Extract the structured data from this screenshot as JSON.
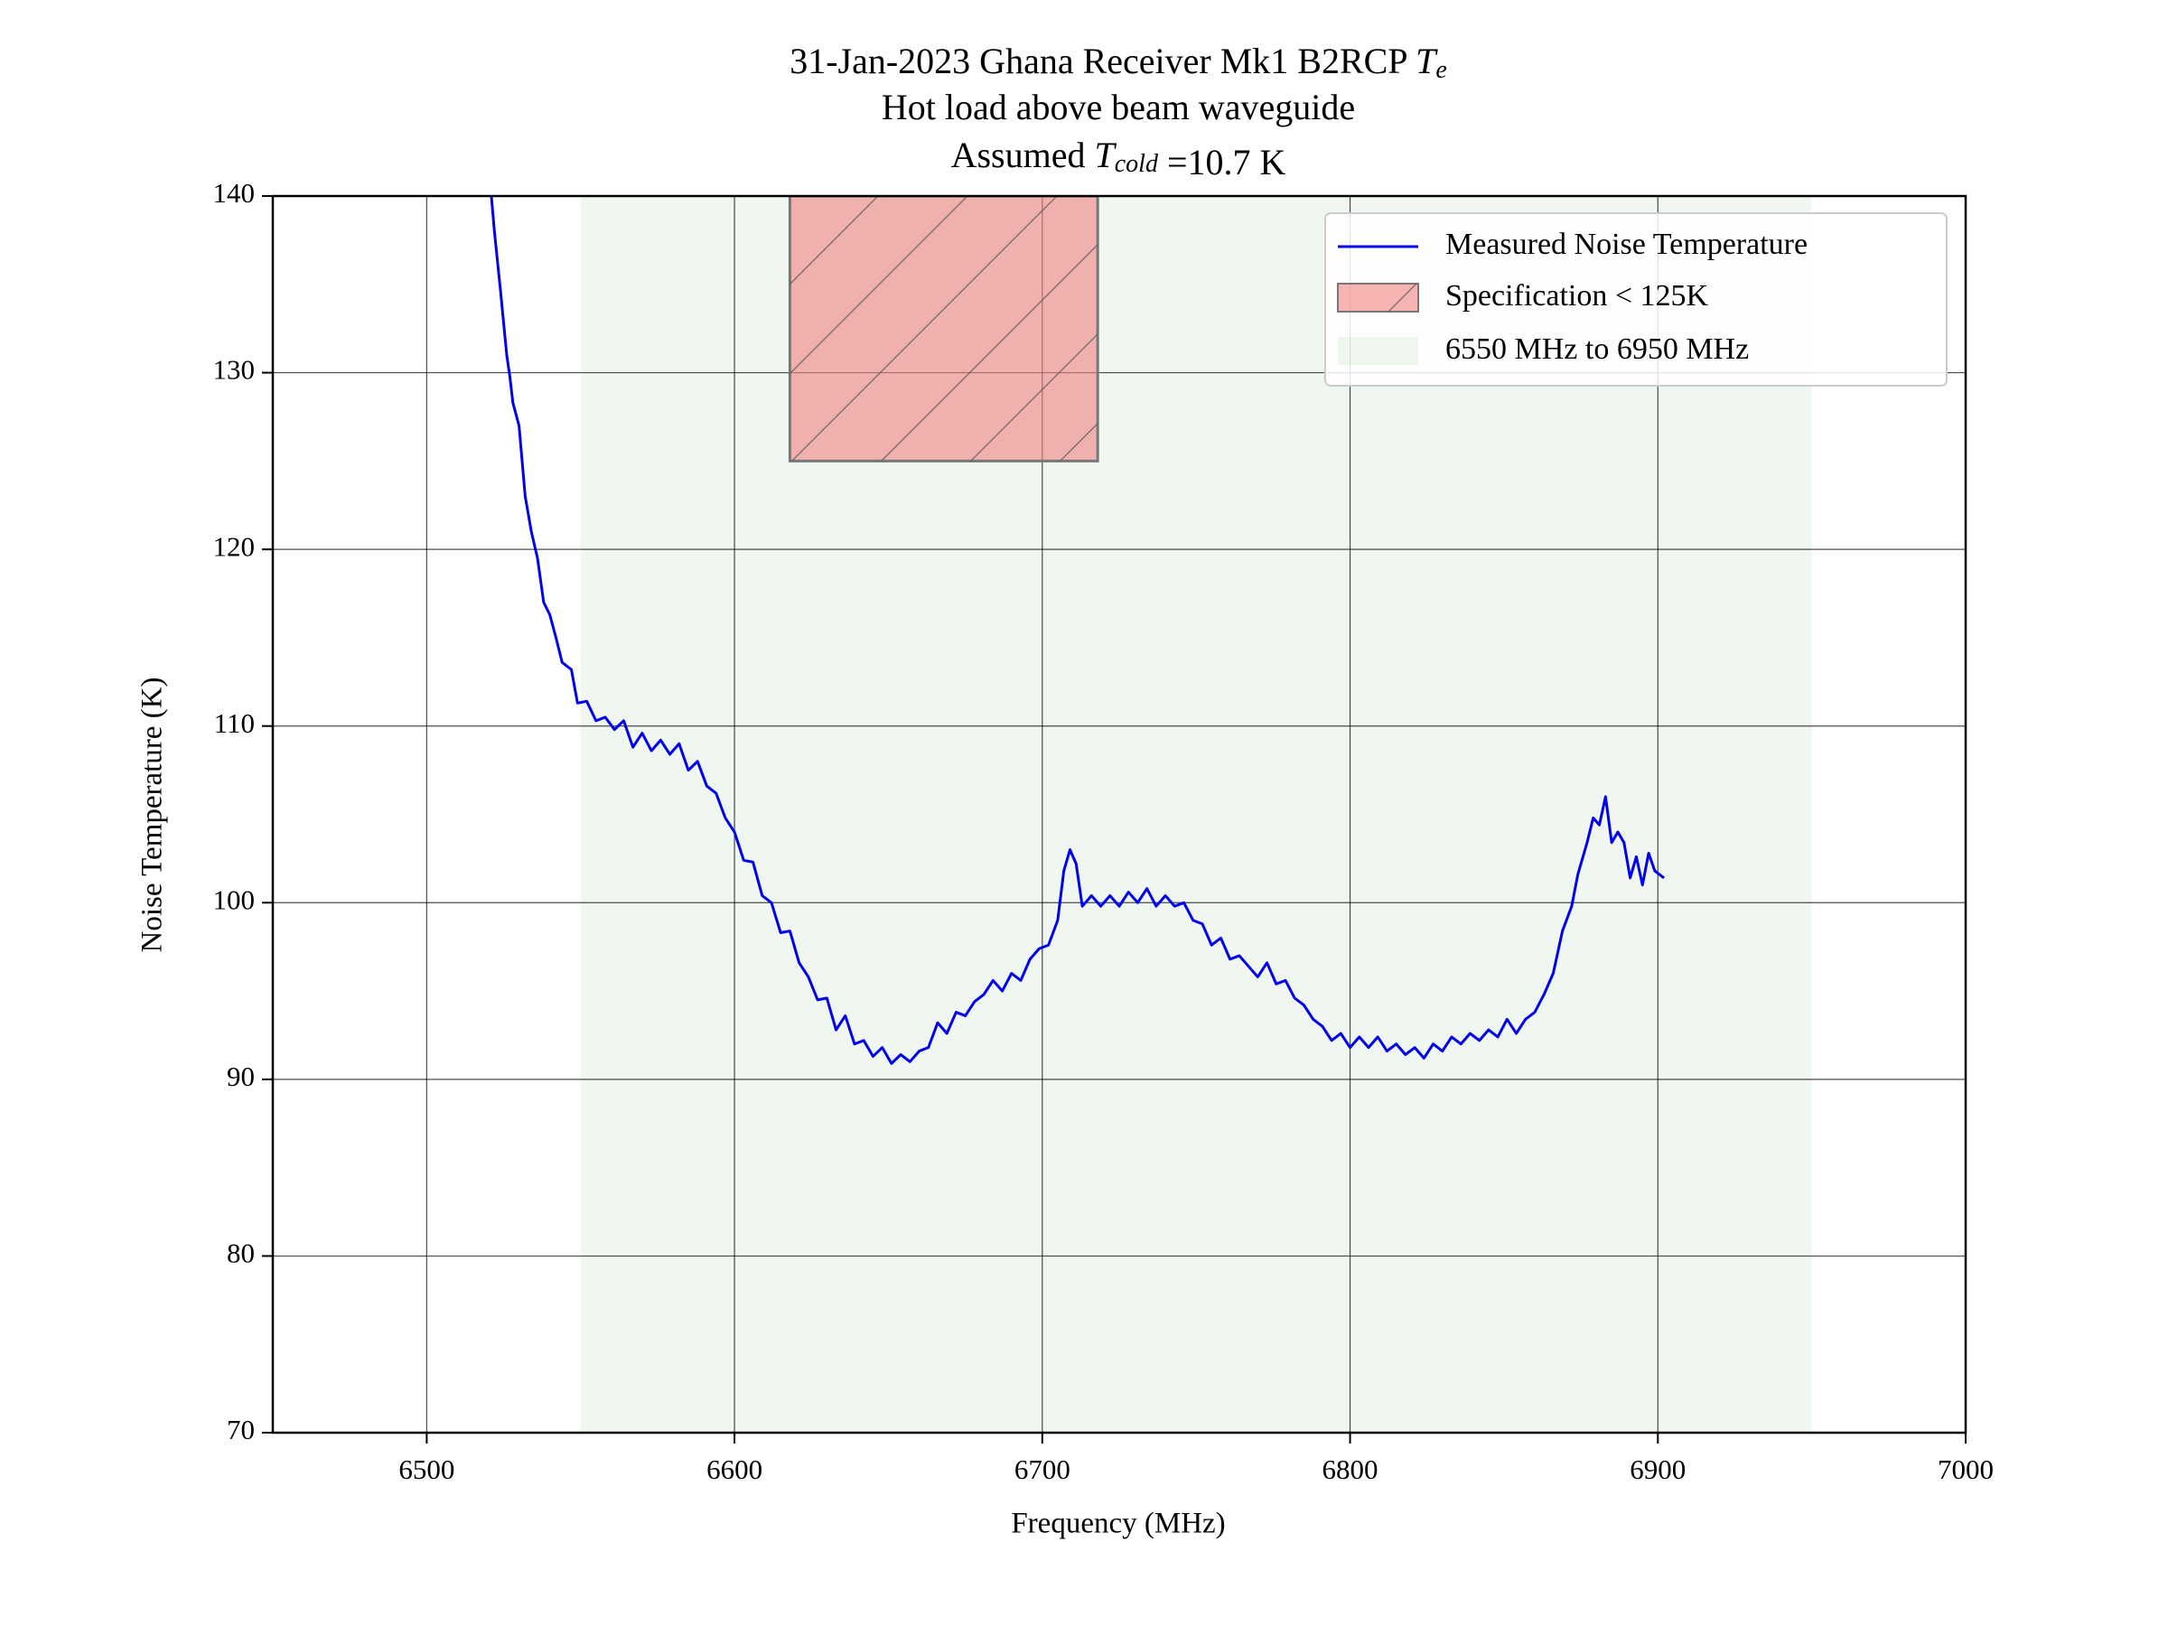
{
  "chart_data": {
    "type": "line",
    "title": [
      [
        "31-Jan-2023 Ghana Receiver Mk1 B2RCP ",
        {
          "i": "T",
          "sub": "e"
        }
      ],
      [
        "Hot load above beam waveguide"
      ],
      [
        "Assumed ",
        {
          "i": "T",
          "sub": "cold"
        },
        " =10.7 K"
      ]
    ],
    "xlabel": "Frequency (MHz)",
    "ylabel": "Noise Temperature (K)",
    "xlim": [
      6450,
      7000
    ],
    "xticks": [
      6500,
      6600,
      6700,
      6800,
      6900,
      7000
    ],
    "ylim": [
      70,
      140
    ],
    "yticks": [
      70,
      80,
      90,
      100,
      110,
      120,
      130,
      140
    ],
    "grid": true,
    "legend": "upper right",
    "series": [
      {
        "name": "Measured Noise Temperature",
        "color": "#0000ee",
        "x": [
          6521,
          6522,
          6524,
          6526,
          6527,
          6528,
          6530,
          6532,
          6534,
          6536,
          6538,
          6540,
          6542,
          6544,
          6547,
          6549,
          6552,
          6555,
          6558,
          6561,
          6564,
          6567,
          6570,
          6573,
          6576,
          6579,
          6582,
          6585,
          6588,
          6591,
          6594,
          6597,
          6600,
          6603,
          6606,
          6609,
          6612,
          6615,
          6618,
          6621,
          6624,
          6627,
          6630,
          6633,
          6636,
          6639,
          6642,
          6645,
          6648,
          6651,
          6654,
          6657,
          6660,
          6663,
          6666,
          6669,
          6672,
          6675,
          6678,
          6681,
          6684,
          6687,
          6690,
          6693,
          6696,
          6699,
          6702,
          6705,
          6707,
          6709,
          6711,
          6713,
          6716,
          6719,
          6722,
          6725,
          6728,
          6731,
          6734,
          6737,
          6740,
          6743,
          6746,
          6749,
          6752,
          6755,
          6758,
          6761,
          6764,
          6767,
          6770,
          6773,
          6776,
          6779,
          6782,
          6785,
          6788,
          6791,
          6794,
          6797,
          6800,
          6803,
          6806,
          6809,
          6812,
          6815,
          6818,
          6821,
          6824,
          6827,
          6830,
          6833,
          6836,
          6839,
          6842,
          6845,
          6848,
          6851,
          6854,
          6857,
          6860,
          6863,
          6866,
          6869,
          6872,
          6874,
          6877,
          6879,
          6881,
          6883,
          6885,
          6887,
          6889,
          6891,
          6893,
          6895,
          6897,
          6899,
          6902
        ],
        "values": [
          140,
          138,
          134.6,
          131,
          129.8,
          128.3,
          127,
          123,
          121,
          119.5,
          117,
          116.3,
          115,
          113.6,
          113.2,
          111.3,
          111.4,
          110.3,
          110.5,
          109.8,
          110.3,
          108.8,
          109.6,
          108.6,
          109.2,
          108.4,
          109.0,
          107.5,
          108.0,
          106.6,
          106.2,
          104.8,
          104.0,
          102.4,
          102.3,
          100.4,
          100.0,
          98.3,
          98.4,
          96.6,
          95.8,
          94.5,
          94.6,
          92.8,
          93.6,
          92.0,
          92.2,
          91.3,
          91.8,
          90.9,
          91.4,
          91.0,
          91.6,
          91.8,
          93.2,
          92.6,
          93.8,
          93.6,
          94.4,
          94.8,
          95.6,
          95.0,
          96.0,
          95.6,
          96.8,
          97.4,
          97.6,
          99.0,
          101.8,
          103.0,
          102.2,
          99.8,
          100.4,
          99.8,
          100.4,
          99.8,
          100.6,
          100.0,
          100.8,
          99.8,
          100.4,
          99.8,
          100.0,
          99.0,
          98.8,
          97.6,
          98.0,
          96.8,
          97.0,
          96.4,
          95.8,
          96.6,
          95.4,
          95.6,
          94.6,
          94.2,
          93.4,
          93.0,
          92.2,
          92.6,
          91.8,
          92.4,
          91.8,
          92.4,
          91.6,
          92.0,
          91.4,
          91.8,
          91.2,
          92.0,
          91.6,
          92.4,
          92.0,
          92.6,
          92.2,
          92.8,
          92.4,
          93.4,
          92.6,
          93.4,
          93.8,
          94.8,
          96.0,
          98.4,
          99.8,
          101.6,
          103.4,
          104.8,
          104.4,
          106.0,
          103.4,
          104.0,
          103.4,
          101.4,
          102.6,
          101.0,
          102.8,
          101.8,
          101.4
        ]
      }
    ],
    "spec": {
      "name": "Specification < 125K",
      "color": "#f08080",
      "x": [
        6618,
        6718
      ],
      "y": [
        125,
        140
      ]
    },
    "band": {
      "name": "6550 MHz to 6950 MHz",
      "color": "#2e8b2e",
      "x": [
        6550,
        6950
      ]
    }
  }
}
